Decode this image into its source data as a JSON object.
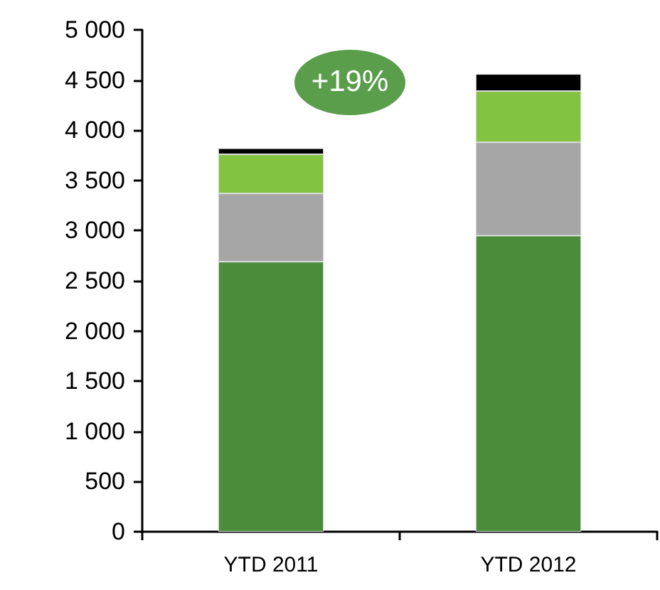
{
  "chart_data": {
    "type": "bar",
    "stacked": true,
    "categories": [
      "YTD 2011",
      "YTD 2012"
    ],
    "series": [
      {
        "color": "#4a8c3a",
        "values": [
          2690,
          2950
        ]
      },
      {
        "color": "#a6a6a6",
        "values": [
          680,
          930
        ]
      },
      {
        "color": "#82c341",
        "values": [
          390,
          510
        ]
      },
      {
        "color": "#000000",
        "values": [
          60,
          170
        ]
      }
    ],
    "ylim": [
      0,
      5000
    ],
    "yticks": [
      0,
      {
        "value": 500,
        "label": "500"
      },
      {
        "value": 1000,
        "label": "1 000"
      },
      {
        "value": 1500,
        "label": "1 500"
      },
      {
        "value": 2000,
        "label": "2 000"
      },
      {
        "value": 2500,
        "label": "2 500"
      },
      {
        "value": 3000,
        "label": "3 000"
      },
      {
        "value": 3500,
        "label": "3 500"
      },
      {
        "value": 4000,
        "label": "4 000"
      },
      {
        "value": 4500,
        "label": "4 500"
      },
      {
        "value": 5000,
        "label": "5 000"
      }
    ],
    "annotations": [
      "+19%"
    ],
    "grid": false
  }
}
